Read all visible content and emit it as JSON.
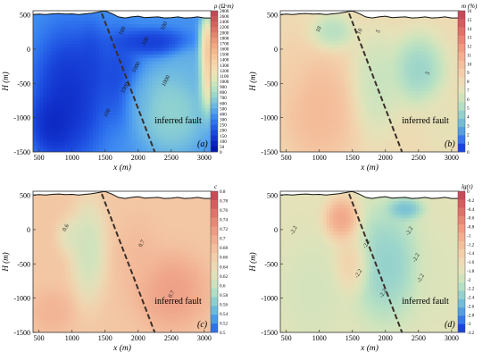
{
  "chart_data": [
    {
      "id": "a",
      "type": "heatmap",
      "panel_letter": "(a)",
      "xlabel": "x (m)",
      "ylabel": "H (m)",
      "xlim": [
        410,
        3110
      ],
      "ylim": [
        -1500,
        560
      ],
      "x_ticks": [
        500,
        1000,
        1500,
        2000,
        2500,
        3000
      ],
      "y_ticks": [
        500,
        0,
        -500,
        -1000,
        -1500
      ],
      "colorbar": {
        "label": "ρ (Ω·m)",
        "ticks": [
          "2800",
          "2600",
          "2400",
          "2200",
          "2000",
          "1800",
          "1700",
          "1600",
          "1500",
          "1400",
          "1300",
          "1200",
          "1100",
          "1000",
          "900",
          "800",
          "700",
          "600",
          "500",
          "400",
          "300",
          "250",
          "200",
          "150",
          "100",
          "50",
          "0"
        ],
        "colors": [
          "#bf4a54",
          "#c95559",
          "#d3645e",
          "#dc7566",
          "#e48770",
          "#eb997a",
          "#f0a983",
          "#f4b88e",
          "#f6c69a",
          "#f7d2a6",
          "#f6dbb0",
          "#efe3b6",
          "#e1e6ba",
          "#cbe6bd",
          "#b2e2c3",
          "#9ad8cb",
          "#84cad6",
          "#6db8e2",
          "#55a3ec",
          "#3e8bf1",
          "#2f73ee",
          "#245de6",
          "#1a47dc",
          "#1335cf",
          "#0c24bf",
          "#0516ad"
        ]
      },
      "annotations": [
        "inferred fault",
        "100",
        "100",
        "100",
        "1000",
        "1000",
        "1000",
        "100"
      ],
      "surface_profile": [
        [
          410,
          505
        ],
        [
          500,
          510
        ],
        [
          600,
          505
        ],
        [
          700,
          515
        ],
        [
          800,
          520
        ],
        [
          900,
          510
        ],
        [
          1000,
          515
        ],
        [
          1100,
          505
        ],
        [
          1200,
          515
        ],
        [
          1300,
          525
        ],
        [
          1400,
          540
        ],
        [
          1480,
          555
        ],
        [
          1520,
          550
        ],
        [
          1600,
          520
        ],
        [
          1700,
          470
        ],
        [
          1800,
          455
        ],
        [
          1900,
          470
        ],
        [
          2000,
          480
        ],
        [
          2100,
          460
        ],
        [
          2200,
          465
        ],
        [
          2300,
          470
        ],
        [
          2400,
          455
        ],
        [
          2500,
          460
        ],
        [
          2600,
          470
        ],
        [
          2700,
          455
        ],
        [
          2800,
          460
        ],
        [
          2900,
          470
        ],
        [
          3000,
          455
        ],
        [
          3110,
          455
        ]
      ],
      "fault_line": [
        [
          1450,
          520
        ],
        [
          2250,
          -1500
        ]
      ],
      "field_blobs": [
        {
          "x": 950,
          "y": -700,
          "rx": 500,
          "ry": 900,
          "v": 40
        },
        {
          "x": 700,
          "y": -1100,
          "rx": 300,
          "ry": 400,
          "v": 20
        },
        {
          "x": 1300,
          "y": -200,
          "rx": 220,
          "ry": 500,
          "v": 250
        },
        {
          "x": 1700,
          "y": -400,
          "rx": 300,
          "ry": 600,
          "v": 250
        },
        {
          "x": 2200,
          "y": 100,
          "rx": 550,
          "ry": 180,
          "v": 150
        },
        {
          "x": 2000,
          "y": -700,
          "rx": 250,
          "ry": 350,
          "v": 900
        },
        {
          "x": 2500,
          "y": -900,
          "rx": 500,
          "ry": 600,
          "v": 1200
        },
        {
          "x": 2800,
          "y": -300,
          "rx": 350,
          "ry": 400,
          "v": 900
        },
        {
          "x": 3050,
          "y": -200,
          "rx": 120,
          "ry": 600,
          "v": 2600
        }
      ],
      "background_value": 700
    },
    {
      "id": "b",
      "type": "heatmap",
      "panel_letter": "(b)",
      "xlabel": "x (m)",
      "ylabel": "H (m)",
      "xlim": [
        410,
        3110
      ],
      "ylim": [
        -1500,
        560
      ],
      "x_ticks": [
        500,
        1000,
        1500,
        2000,
        2500,
        3000
      ],
      "y_ticks": [
        500,
        0,
        -500,
        -1000,
        -1500
      ],
      "colorbar": {
        "label": "m (%)",
        "ticks": [
          "16",
          "15",
          "14",
          "13",
          "12",
          "11",
          "10",
          "9",
          "8",
          "7",
          "6",
          "5",
          "4",
          "3",
          "2",
          "1",
          "0"
        ],
        "colors": [
          "#c84a58",
          "#d65c5f",
          "#e17168",
          "#e98774",
          "#ef9c81",
          "#f2ae8e",
          "#f4bf9c",
          "#f3cea9",
          "#eedab3",
          "#e3e2b9",
          "#cfe4bd",
          "#b4dfc4",
          "#94d1cd",
          "#73bcd9",
          "#529fe4",
          "#3578ea",
          "#1a45dd"
        ]
      },
      "annotations": [
        "inferred fault",
        "10",
        "10",
        "5",
        "5"
      ],
      "surface_profile": [
        [
          410,
          505
        ],
        [
          500,
          510
        ],
        [
          600,
          505
        ],
        [
          700,
          515
        ],
        [
          800,
          520
        ],
        [
          900,
          510
        ],
        [
          1000,
          515
        ],
        [
          1100,
          505
        ],
        [
          1200,
          515
        ],
        [
          1300,
          525
        ],
        [
          1400,
          540
        ],
        [
          1480,
          555
        ],
        [
          1520,
          550
        ],
        [
          1600,
          520
        ],
        [
          1700,
          470
        ],
        [
          1800,
          455
        ],
        [
          1900,
          470
        ],
        [
          2000,
          480
        ],
        [
          2100,
          460
        ],
        [
          2200,
          465
        ],
        [
          2300,
          470
        ],
        [
          2400,
          455
        ],
        [
          2500,
          460
        ],
        [
          2600,
          470
        ],
        [
          2700,
          455
        ],
        [
          2800,
          460
        ],
        [
          2900,
          470
        ],
        [
          3000,
          455
        ],
        [
          3110,
          455
        ]
      ],
      "fault_line": [
        [
          1450,
          520
        ],
        [
          2250,
          -1500
        ]
      ],
      "field_blobs": [
        {
          "x": 1000,
          "y": -900,
          "rx": 550,
          "ry": 800,
          "v": 11
        },
        {
          "x": 1200,
          "y": 250,
          "rx": 300,
          "ry": 250,
          "v": 4
        },
        {
          "x": 1850,
          "y": -500,
          "rx": 350,
          "ry": 700,
          "v": 5
        },
        {
          "x": 2500,
          "y": -300,
          "rx": 400,
          "ry": 500,
          "v": 3
        },
        {
          "x": 2900,
          "y": -1100,
          "rx": 350,
          "ry": 450,
          "v": 7
        },
        {
          "x": 600,
          "y": -300,
          "rx": 200,
          "ry": 400,
          "v": 9
        }
      ],
      "background_value": 8
    },
    {
      "id": "c",
      "type": "heatmap",
      "panel_letter": "(c)",
      "xlabel": "x (m)",
      "ylabel": "H (m)",
      "xlim": [
        410,
        3110
      ],
      "ylim": [
        -1500,
        560
      ],
      "x_ticks": [
        500,
        1000,
        1500,
        2000,
        2500,
        3000
      ],
      "y_ticks": [
        500,
        0,
        -500,
        -1000,
        -1500
      ],
      "colorbar": {
        "label": "c",
        "ticks": [
          "0.8",
          "0.78",
          "0.76",
          "0.74",
          "0.72",
          "0.7",
          "0.68",
          "0.66",
          "0.64",
          "0.62",
          "0.6",
          "0.58",
          "0.56",
          "0.54",
          "0.52",
          "0.5"
        ],
        "colors": [
          "#c94b57",
          "#d65e60",
          "#e0736a",
          "#e88876",
          "#ed9c83",
          "#f1ae90",
          "#f3bf9e",
          "#f2ceaa",
          "#ecd9b4",
          "#e0e1ba",
          "#cbe3be",
          "#afdec5",
          "#8dcfcf",
          "#6bb9dc",
          "#4b9ae6",
          "#2f72ea"
        ]
      },
      "annotations": [
        "inferred fault",
        "0.6",
        "0.7",
        "0.7"
      ],
      "surface_profile": [
        [
          410,
          505
        ],
        [
          500,
          510
        ],
        [
          600,
          505
        ],
        [
          700,
          515
        ],
        [
          800,
          520
        ],
        [
          900,
          510
        ],
        [
          1000,
          515
        ],
        [
          1100,
          505
        ],
        [
          1200,
          515
        ],
        [
          1300,
          525
        ],
        [
          1400,
          540
        ],
        [
          1480,
          555
        ],
        [
          1520,
          550
        ],
        [
          1600,
          520
        ],
        [
          1700,
          470
        ],
        [
          1800,
          455
        ],
        [
          1900,
          470
        ],
        [
          2000,
          480
        ],
        [
          2100,
          460
        ],
        [
          2200,
          465
        ],
        [
          2300,
          470
        ],
        [
          2400,
          455
        ],
        [
          2500,
          460
        ],
        [
          2600,
          470
        ],
        [
          2700,
          455
        ],
        [
          2800,
          460
        ],
        [
          2900,
          470
        ],
        [
          3000,
          455
        ],
        [
          3110,
          455
        ]
      ],
      "fault_line": [
        [
          1450,
          520
        ],
        [
          2250,
          -1500
        ]
      ],
      "field_blobs": [
        {
          "x": 1250,
          "y": -300,
          "rx": 250,
          "ry": 700,
          "v": 0.58
        },
        {
          "x": 1000,
          "y": -100,
          "rx": 200,
          "ry": 250,
          "v": 0.6
        },
        {
          "x": 2500,
          "y": -900,
          "rx": 500,
          "ry": 500,
          "v": 0.73
        },
        {
          "x": 2000,
          "y": -400,
          "rx": 300,
          "ry": 500,
          "v": 0.69
        },
        {
          "x": 700,
          "y": -1200,
          "rx": 300,
          "ry": 300,
          "v": 0.7
        }
      ],
      "background_value": 0.67
    },
    {
      "id": "d",
      "type": "heatmap",
      "panel_letter": "(d)",
      "xlabel": "x (m)",
      "ylabel": "H (m)",
      "xlim": [
        410,
        3110
      ],
      "ylim": [
        -1500,
        560
      ],
      "x_ticks": [
        500,
        1000,
        1500,
        2000,
        2500,
        3000
      ],
      "y_ticks": [
        500,
        0,
        -500,
        -1000,
        -1500
      ],
      "colorbar": {
        "label": "lg(τ)",
        "ticks": [
          "0",
          "-0.2",
          "-0.4",
          "-0.6",
          "-0.8",
          "-1",
          "-1.2",
          "-1.4",
          "-1.6",
          "-1.8",
          "-2",
          "-2.2",
          "-2.4",
          "-2.6",
          "-2.8",
          "-3",
          "-3.2"
        ],
        "colors": [
          "#c84a58",
          "#d65c5f",
          "#e17168",
          "#e98774",
          "#ef9c81",
          "#f2ae8e",
          "#f4bf9c",
          "#f3cea9",
          "#eedab3",
          "#e3e2b9",
          "#cfe4bd",
          "#b4dfc4",
          "#94d1cd",
          "#73bcd9",
          "#529fe4",
          "#3578ea",
          "#1a45dd"
        ]
      },
      "annotations": [
        "inferred fault",
        "-2.2",
        "-2.2",
        "-2.2",
        "-2.2",
        "-2.2",
        "-2.2",
        "-2.2"
      ],
      "surface_profile": [
        [
          410,
          505
        ],
        [
          500,
          510
        ],
        [
          600,
          505
        ],
        [
          700,
          515
        ],
        [
          800,
          520
        ],
        [
          900,
          510
        ],
        [
          1000,
          515
        ],
        [
          1100,
          505
        ],
        [
          1200,
          515
        ],
        [
          1300,
          525
        ],
        [
          1400,
          540
        ],
        [
          1480,
          555
        ],
        [
          1520,
          550
        ],
        [
          1600,
          520
        ],
        [
          1700,
          470
        ],
        [
          1800,
          455
        ],
        [
          1900,
          470
        ],
        [
          2000,
          480
        ],
        [
          2100,
          460
        ],
        [
          2200,
          465
        ],
        [
          2300,
          470
        ],
        [
          2400,
          455
        ],
        [
          2500,
          460
        ],
        [
          2600,
          470
        ],
        [
          2700,
          455
        ],
        [
          2800,
          460
        ],
        [
          2900,
          470
        ],
        [
          3000,
          455
        ],
        [
          3110,
          455
        ]
      ],
      "fault_line": [
        [
          1450,
          520
        ],
        [
          2250,
          -1500
        ]
      ],
      "field_blobs": [
        {
          "x": 1350,
          "y": 150,
          "rx": 250,
          "ry": 300,
          "v": -0.6
        },
        {
          "x": 1500,
          "y": -500,
          "rx": 250,
          "ry": 400,
          "v": -1.2
        },
        {
          "x": 2000,
          "y": -500,
          "rx": 500,
          "ry": 800,
          "v": -2.6
        },
        {
          "x": 2300,
          "y": 300,
          "rx": 250,
          "ry": 150,
          "v": -2.8
        },
        {
          "x": 900,
          "y": -900,
          "rx": 450,
          "ry": 700,
          "v": -2.0
        },
        {
          "x": 2800,
          "y": -700,
          "rx": 300,
          "ry": 700,
          "v": -1.9
        }
      ],
      "background_value": -1.8
    }
  ]
}
